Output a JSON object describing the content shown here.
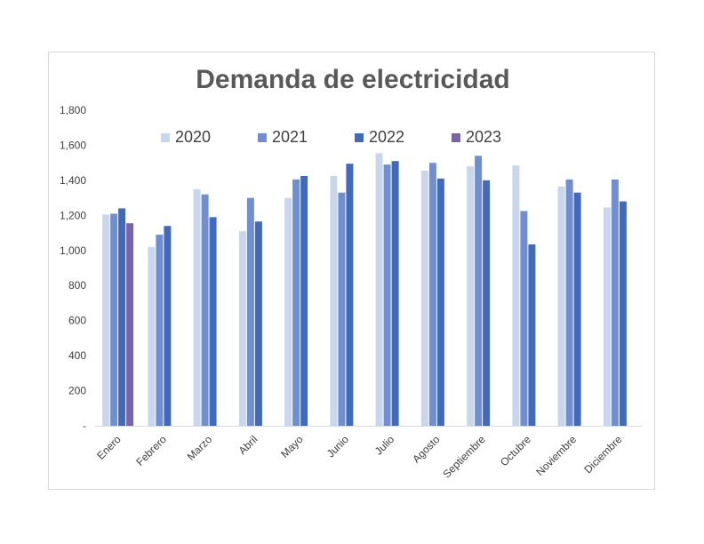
{
  "chart_data": {
    "type": "bar",
    "title": "Demanda de electricidad",
    "xlabel": "",
    "ylabel": "",
    "ylim": [
      0,
      1800
    ],
    "y_ticks": [
      0,
      200,
      400,
      600,
      800,
      1000,
      1200,
      1400,
      1600,
      1800
    ],
    "y_tick_labels": [
      "-",
      "200",
      "400",
      "600",
      "800",
      "1,000",
      "1,200",
      "1,400",
      "1,600",
      "1,800"
    ],
    "grid": false,
    "legend_position": "top",
    "categories": [
      "Enero",
      "Febrero",
      "Marzo",
      "Abril",
      "Mayo",
      "Junio",
      "Julio",
      "Agosto",
      "Septiembre",
      "Octubre",
      "Noviembre",
      "Diciembre"
    ],
    "series": [
      {
        "name": "2020",
        "color": "#c9d7ee",
        "values": [
          1205,
          1020,
          1350,
          1110,
          1300,
          1425,
          1555,
          1455,
          1480,
          1485,
          1365,
          1245
        ]
      },
      {
        "name": "2021",
        "color": "#6f8fd0",
        "values": [
          1210,
          1090,
          1320,
          1300,
          1405,
          1330,
          1490,
          1500,
          1540,
          1225,
          1405,
          1405
        ]
      },
      {
        "name": "2022",
        "color": "#4169be",
        "values": [
          1240,
          1140,
          1190,
          1165,
          1425,
          1495,
          1510,
          1410,
          1400,
          1035,
          1330,
          1280
        ]
      },
      {
        "name": "2023",
        "color": "#7a63a6",
        "values": [
          1155,
          null,
          null,
          null,
          null,
          null,
          null,
          null,
          null,
          null,
          null,
          null
        ]
      }
    ]
  }
}
